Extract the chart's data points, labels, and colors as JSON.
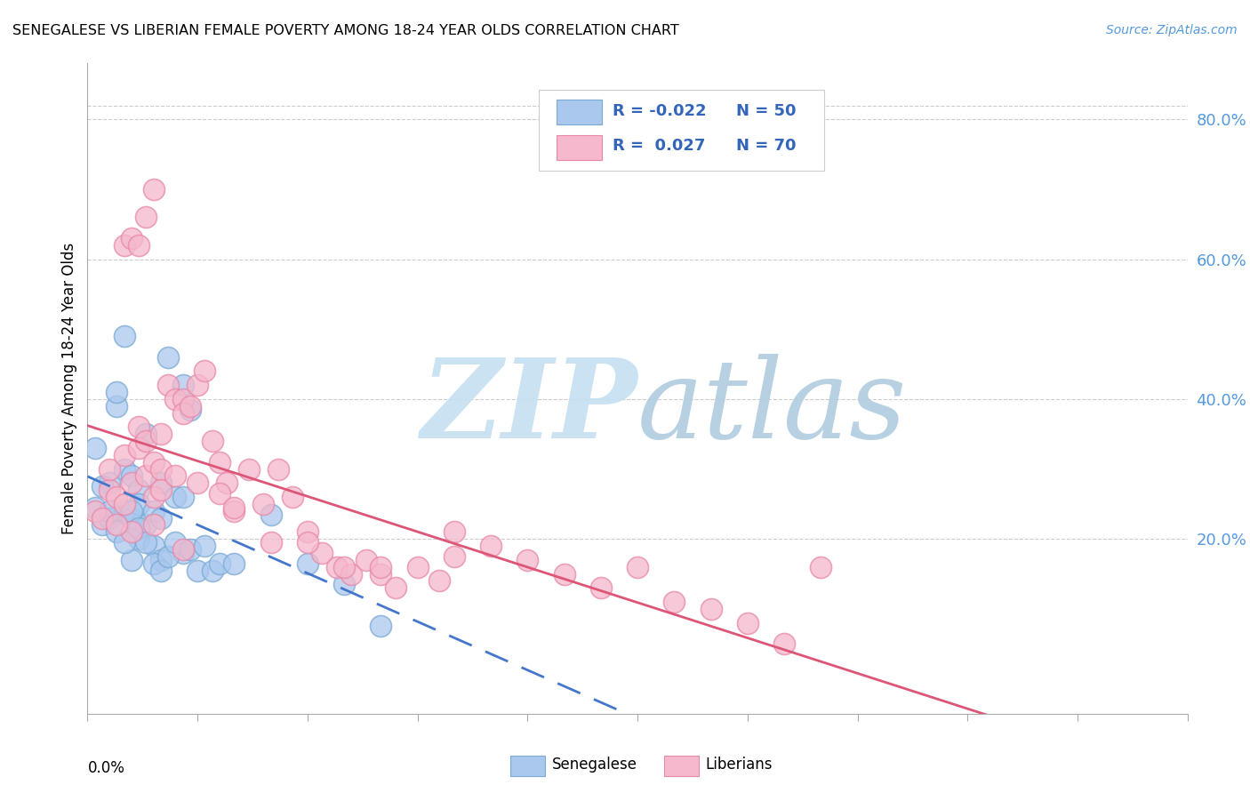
{
  "title": "SENEGALESE VS LIBERIAN FEMALE POVERTY AMONG 18-24 YEAR OLDS CORRELATION CHART",
  "source": "Source: ZipAtlas.com",
  "ylabel": "Female Poverty Among 18-24 Year Olds",
  "right_yticks": [
    0.2,
    0.4,
    0.6,
    0.8
  ],
  "right_yticklabels": [
    "20.0%",
    "40.0%",
    "60.0%",
    "80.0%"
  ],
  "xlim": [
    0.0,
    0.15
  ],
  "ylim": [
    -0.05,
    0.88
  ],
  "blue_color": "#aac8ee",
  "pink_color": "#f5b8cc",
  "blue_edge": "#7aaad4",
  "pink_edge": "#e888a8",
  "trend_blue": "#4477cc",
  "trend_pink": "#dd5577",
  "watermark_zip_color": "#c8dff0",
  "watermark_atlas_color": "#b0c8e0",
  "background_color": "#ffffff",
  "grid_color": "#cccccc",
  "blue_scatter_x": [
    0.001,
    0.002,
    0.003,
    0.003,
    0.004,
    0.004,
    0.005,
    0.005,
    0.006,
    0.006,
    0.006,
    0.007,
    0.007,
    0.007,
    0.008,
    0.008,
    0.009,
    0.009,
    0.01,
    0.01,
    0.01,
    0.011,
    0.012,
    0.013,
    0.013,
    0.014,
    0.001,
    0.002,
    0.003,
    0.004,
    0.005,
    0.006,
    0.007,
    0.008,
    0.009,
    0.01,
    0.011,
    0.012,
    0.013,
    0.014,
    0.015,
    0.016,
    0.017,
    0.018,
    0.02,
    0.025,
    0.03,
    0.035,
    0.04,
    0.005
  ],
  "blue_scatter_y": [
    0.245,
    0.22,
    0.28,
    0.23,
    0.39,
    0.21,
    0.3,
    0.24,
    0.29,
    0.23,
    0.17,
    0.27,
    0.25,
    0.2,
    0.35,
    0.22,
    0.24,
    0.19,
    0.28,
    0.23,
    0.17,
    0.46,
    0.26,
    0.42,
    0.18,
    0.385,
    0.33,
    0.275,
    0.24,
    0.41,
    0.195,
    0.24,
    0.215,
    0.195,
    0.165,
    0.155,
    0.175,
    0.195,
    0.26,
    0.185,
    0.155,
    0.19,
    0.155,
    0.165,
    0.165,
    0.235,
    0.165,
    0.135,
    0.075,
    0.49
  ],
  "pink_scatter_x": [
    0.001,
    0.002,
    0.003,
    0.003,
    0.004,
    0.005,
    0.005,
    0.006,
    0.006,
    0.007,
    0.007,
    0.008,
    0.008,
    0.009,
    0.009,
    0.01,
    0.01,
    0.011,
    0.012,
    0.013,
    0.013,
    0.014,
    0.015,
    0.016,
    0.017,
    0.018,
    0.019,
    0.02,
    0.022,
    0.024,
    0.026,
    0.028,
    0.03,
    0.032,
    0.034,
    0.036,
    0.038,
    0.04,
    0.042,
    0.045,
    0.048,
    0.05,
    0.055,
    0.06,
    0.065,
    0.07,
    0.075,
    0.08,
    0.085,
    0.09,
    0.095,
    0.1,
    0.004,
    0.005,
    0.006,
    0.007,
    0.008,
    0.009,
    0.01,
    0.012,
    0.015,
    0.018,
    0.02,
    0.025,
    0.03,
    0.035,
    0.04,
    0.05,
    0.013,
    0.009
  ],
  "pink_scatter_y": [
    0.24,
    0.23,
    0.27,
    0.3,
    0.26,
    0.32,
    0.25,
    0.28,
    0.21,
    0.36,
    0.33,
    0.34,
    0.29,
    0.31,
    0.26,
    0.35,
    0.3,
    0.42,
    0.4,
    0.4,
    0.38,
    0.39,
    0.42,
    0.44,
    0.34,
    0.31,
    0.28,
    0.24,
    0.3,
    0.25,
    0.3,
    0.26,
    0.21,
    0.18,
    0.16,
    0.15,
    0.17,
    0.15,
    0.13,
    0.16,
    0.14,
    0.21,
    0.19,
    0.17,
    0.15,
    0.13,
    0.16,
    0.11,
    0.1,
    0.08,
    0.05,
    0.16,
    0.22,
    0.62,
    0.63,
    0.62,
    0.66,
    0.7,
    0.27,
    0.29,
    0.28,
    0.265,
    0.245,
    0.195,
    0.195,
    0.16,
    0.16,
    0.175,
    0.185,
    0.22
  ]
}
